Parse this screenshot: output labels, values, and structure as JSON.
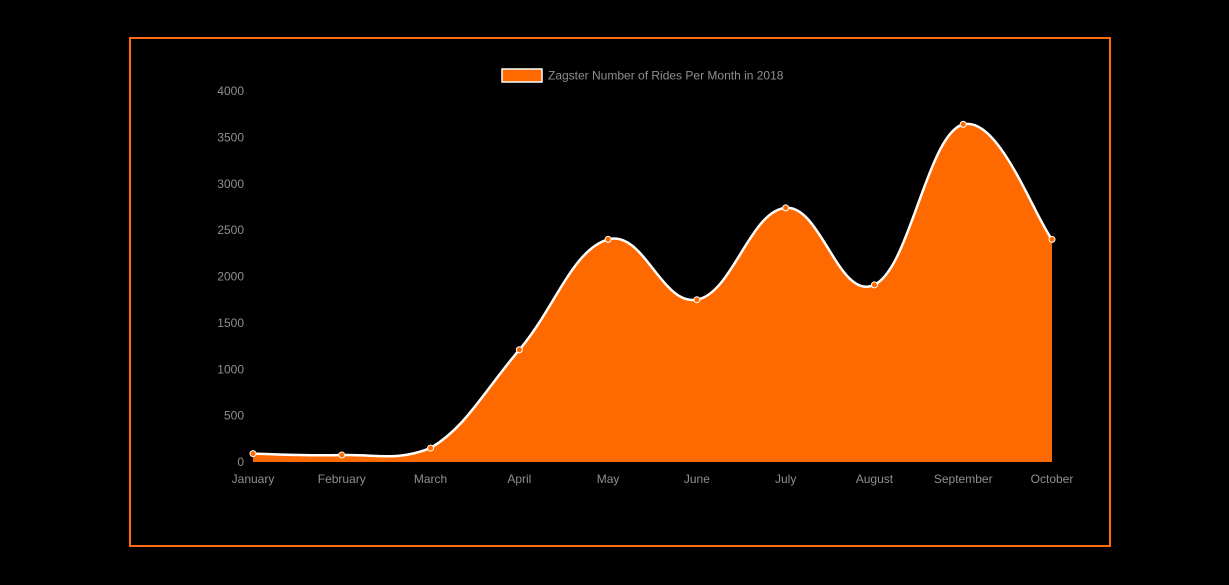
{
  "chart_data": {
    "type": "area",
    "categories": [
      "January",
      "February",
      "March",
      "April",
      "May",
      "June",
      "July",
      "August",
      "September",
      "October"
    ],
    "series": [
      {
        "name": "Zagster Number of Rides Per Month in 2018",
        "values": [
          90,
          75,
          150,
          1210,
          2400,
          1750,
          2740,
          1910,
          3640,
          2400
        ]
      }
    ],
    "y_ticks": [
      "0",
      "500",
      "1000",
      "1500",
      "2000",
      "2500",
      "3000",
      "3500",
      "4000"
    ],
    "ylim": [
      0,
      4000
    ],
    "grid": false,
    "legend_position": "top",
    "title": "",
    "xlabel": "",
    "ylabel": ""
  },
  "colors": {
    "background": "#000000",
    "frame_border": "#ff6a13",
    "area_fill": "#ff6a00",
    "line": "#ffffff",
    "point_fill": "#ff6a00",
    "point_stroke": "#ffffff",
    "tick_text": "#8f8f8f"
  }
}
